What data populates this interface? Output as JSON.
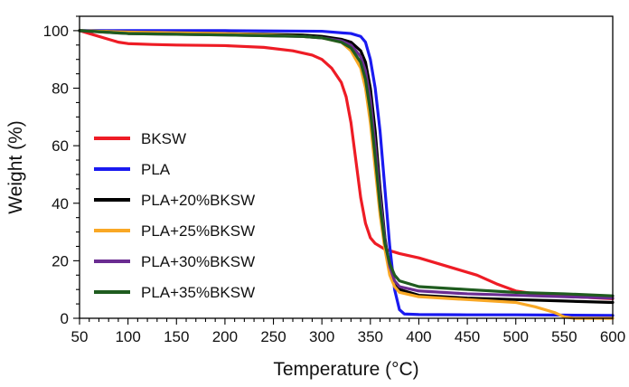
{
  "chart_data": {
    "type": "line",
    "title": "",
    "xlabel": "Temperature (°C)",
    "ylabel": "Weight (%)",
    "xlim": [
      50,
      600
    ],
    "ylim": [
      0,
      105
    ],
    "x_ticks": [
      50,
      100,
      150,
      200,
      250,
      300,
      350,
      400,
      450,
      500,
      550,
      600
    ],
    "y_ticks": [
      0,
      20,
      40,
      60,
      80,
      100
    ],
    "grid": false,
    "legend_position": "left-lower-middle",
    "series": [
      {
        "name": "BKSW",
        "color": "#ee1c25",
        "x": [
          50,
          60,
          75,
          90,
          100,
          125,
          150,
          200,
          240,
          270,
          290,
          300,
          310,
          320,
          325,
          330,
          335,
          340,
          345,
          350,
          355,
          360,
          365,
          370,
          375,
          380,
          400,
          420,
          440,
          460,
          480,
          500,
          520,
          560,
          600
        ],
        "y": [
          100,
          99,
          97.5,
          96,
          95.5,
          95.2,
          95,
          94.8,
          94.2,
          93,
          91.5,
          90,
          87,
          82,
          77,
          68,
          55,
          42,
          33,
          28,
          26,
          25,
          24,
          23.5,
          23,
          22.5,
          21,
          19,
          17,
          15,
          12,
          9.5,
          8.5,
          7.5,
          6.8
        ]
      },
      {
        "name": "PLA",
        "color": "#1a1af0",
        "x": [
          50,
          100,
          200,
          300,
          330,
          340,
          345,
          350,
          355,
          360,
          365,
          370,
          375,
          380,
          385,
          400,
          450,
          500,
          550,
          600
        ],
        "y": [
          100,
          100,
          100,
          99.8,
          99,
          98,
          96,
          90,
          80,
          65,
          45,
          25,
          10,
          3,
          1.5,
          1.3,
          1.2,
          1.2,
          1.1,
          1
        ]
      },
      {
        "name": "PLA+20%BKSW",
        "color": "#000000",
        "x": [
          50,
          100,
          200,
          280,
          300,
          320,
          330,
          340,
          345,
          350,
          355,
          360,
          365,
          370,
          375,
          380,
          400,
          450,
          500,
          550,
          600
        ],
        "y": [
          100,
          99.5,
          99,
          98.5,
          98,
          97,
          96,
          93,
          89,
          80,
          65,
          45,
          28,
          17,
          12,
          10,
          8,
          7,
          6.5,
          6,
          5.5
        ]
      },
      {
        "name": "PLA+25%BKSW",
        "color": "#f9a825",
        "x": [
          50,
          100,
          200,
          280,
          300,
          320,
          330,
          340,
          345,
          350,
          355,
          360,
          365,
          370,
          375,
          380,
          400,
          450,
          500,
          520,
          540,
          550,
          560,
          580,
          600
        ],
        "y": [
          100,
          99.5,
          99,
          98,
          97.5,
          96,
          93,
          87,
          80,
          68,
          52,
          36,
          24,
          15,
          11,
          9,
          7.5,
          6.5,
          5.5,
          4,
          2,
          0.5,
          0,
          0,
          0
        ]
      },
      {
        "name": "PLA+30%BKSW",
        "color": "#6a2c91",
        "x": [
          50,
          100,
          200,
          280,
          300,
          320,
          330,
          340,
          345,
          350,
          355,
          360,
          365,
          370,
          375,
          380,
          400,
          450,
          500,
          550,
          600
        ],
        "y": [
          100,
          99,
          98.5,
          98,
          97.5,
          96.5,
          95,
          91,
          86,
          76,
          60,
          42,
          27,
          18,
          13,
          11,
          9.5,
          8.5,
          8,
          7.5,
          7
        ]
      },
      {
        "name": "PLA+35%BKSW",
        "color": "#1f5c1f",
        "x": [
          50,
          100,
          200,
          280,
          300,
          320,
          330,
          340,
          345,
          350,
          355,
          360,
          365,
          370,
          375,
          380,
          400,
          450,
          500,
          550,
          600
        ],
        "y": [
          100,
          99,
          98.5,
          98,
          97.5,
          96,
          94,
          89,
          83,
          72,
          56,
          39,
          26,
          19,
          15,
          13,
          11,
          10,
          9,
          8.5,
          7.8
        ]
      }
    ]
  }
}
